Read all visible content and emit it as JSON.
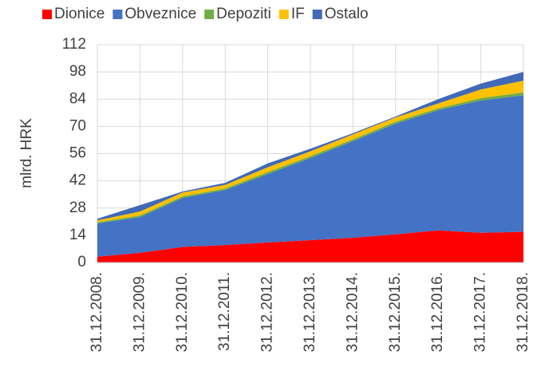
{
  "chart_data": {
    "type": "stacked_area",
    "categories": [
      "31.12.2008.",
      "31.12.2009.",
      "31.12.2010.",
      "31.12.2011.",
      "31.12.2012.",
      "31.12.2013.",
      "31.12.2014.",
      "31.12.2015.",
      "31.12.2016.",
      "31.12.2017.",
      "31.12.2018."
    ],
    "series": [
      {
        "name": "Dionice",
        "color": "#ff0000",
        "values": [
          3,
          5,
          8,
          9,
          10.3,
          11.5,
          12.7,
          14.5,
          16.5,
          15.3,
          15.8
        ]
      },
      {
        "name": "Obveznice",
        "color": "#4472c4",
        "values": [
          17.1,
          18.4,
          25.2,
          28.3,
          35.2,
          42.2,
          49.7,
          56.9,
          61.8,
          68,
          70.2
        ]
      },
      {
        "name": "Depoziti",
        "color": "#70ad47",
        "values": [
          0.6,
          0.8,
          0.8,
          0.8,
          1,
          1,
          1,
          1,
          1,
          1.2,
          1.5
        ]
      },
      {
        "name": "IF",
        "color": "#ffc000",
        "values": [
          1,
          2,
          2,
          1.8,
          2.5,
          2.5,
          2.5,
          2.2,
          2.5,
          4.5,
          6
        ]
      },
      {
        "name": "Ostalo",
        "color": "#4169b8",
        "values": [
          0.8,
          3.3,
          0.5,
          1.1,
          2,
          1.3,
          0.6,
          0.5,
          2.2,
          3,
          4.5
        ]
      }
    ],
    "ylabel": "mlrd. HRK",
    "ylim": [
      0,
      112
    ],
    "yticks": [
      0,
      14,
      28,
      42,
      56,
      70,
      84,
      98,
      112
    ],
    "grid": true,
    "legend": "top"
  }
}
